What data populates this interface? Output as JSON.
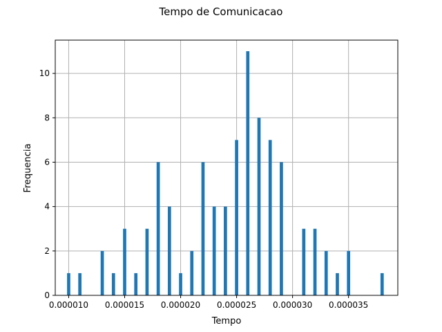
{
  "chart_data": {
    "type": "bar",
    "title": "Tempo de Comunicacao",
    "xlabel": "Tempo",
    "ylabel": "Frequencia",
    "xlim": [
      8.8e-06,
      3.94e-05
    ],
    "ylim": [
      0,
      11.5
    ],
    "grid": true,
    "bin_width": 2.9e-07,
    "color": "#1f77b4",
    "x_ticks": [
      "0.000010",
      "0.000015",
      "0.000020",
      "0.000025",
      "0.000030",
      "0.000035"
    ],
    "x_tick_values": [
      1e-05,
      1.5e-05,
      2e-05,
      2.5e-05,
      3e-05,
      3.5e-05
    ],
    "y_ticks": [
      0,
      2,
      4,
      6,
      8,
      10
    ],
    "bins": [
      {
        "x": 1e-05,
        "count": 1
      },
      {
        "x": 1.1e-05,
        "count": 1
      },
      {
        "x": 1.3e-05,
        "count": 2
      },
      {
        "x": 1.4e-05,
        "count": 1
      },
      {
        "x": 1.5e-05,
        "count": 3
      },
      {
        "x": 1.6e-05,
        "count": 1
      },
      {
        "x": 1.7e-05,
        "count": 3
      },
      {
        "x": 1.8e-05,
        "count": 6
      },
      {
        "x": 1.9e-05,
        "count": 4
      },
      {
        "x": 2e-05,
        "count": 1
      },
      {
        "x": 2.1e-05,
        "count": 2
      },
      {
        "x": 2.2e-05,
        "count": 6
      },
      {
        "x": 2.3e-05,
        "count": 4
      },
      {
        "x": 2.4e-05,
        "count": 4
      },
      {
        "x": 2.5e-05,
        "count": 7
      },
      {
        "x": 2.6e-05,
        "count": 11
      },
      {
        "x": 2.7e-05,
        "count": 8
      },
      {
        "x": 2.8e-05,
        "count": 7
      },
      {
        "x": 2.9e-05,
        "count": 6
      },
      {
        "x": 3.1e-05,
        "count": 3
      },
      {
        "x": 3.2e-05,
        "count": 3
      },
      {
        "x": 3.3e-05,
        "count": 2
      },
      {
        "x": 3.4e-05,
        "count": 1
      },
      {
        "x": 3.5e-05,
        "count": 2
      },
      {
        "x": 3.8e-05,
        "count": 1
      }
    ]
  }
}
